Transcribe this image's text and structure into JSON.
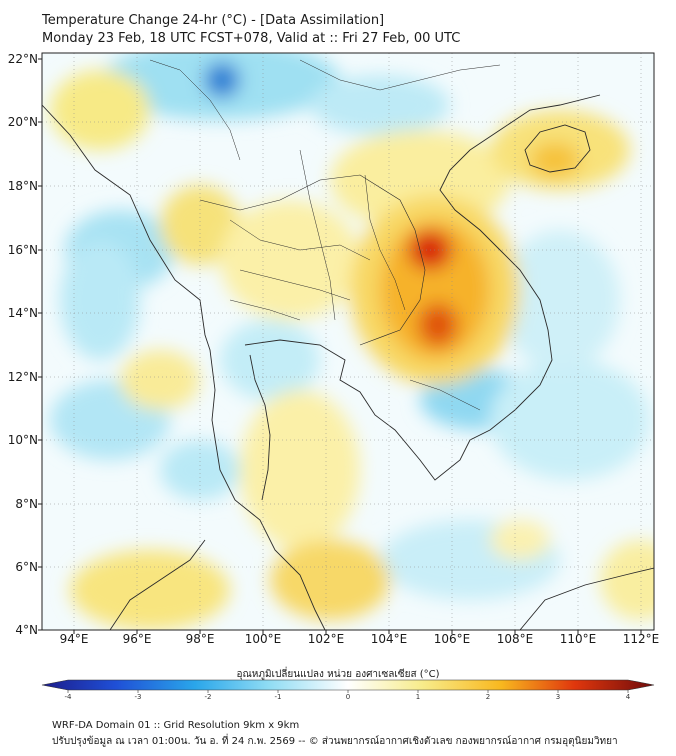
{
  "title_line1": "Temperature Change 24-hr (°C) - [Data Assimilation]",
  "title_line2": "Monday 23 Feb, 18 UTC FCST+078, Valid at :: Fri 27 Feb, 00 UTC",
  "lat_labels": [
    "22°N",
    "20°N",
    "18°N",
    "16°N",
    "14°N",
    "12°N",
    "10°N",
    "8°N",
    "6°N",
    "4°N"
  ],
  "lon_labels": [
    "94°E",
    "96°E",
    "98°E",
    "100°E",
    "102°E",
    "104°E",
    "106°E",
    "108°E",
    "110°E",
    "112°E"
  ],
  "colorbar": {
    "label": "อุณหภูมิเปลี่ยนแปลง หน่วย องศาเซลเซียส (°C)",
    "ticks": [
      "-4",
      "-3",
      "-2",
      "-1",
      "0",
      "1",
      "2",
      "3",
      "4"
    ],
    "range": [
      -4,
      4
    ]
  },
  "footer_line1": "WRF-DA Domain 01 :: Grid Resolution 9km x 9km",
  "footer_line2": "ปรับปรุงข้อมูล ณ เวลา 01:00น. วัน อ. ที่ 24 ก.พ. 2569 -- © ส่วนพยากรณ์อากาศเชิงตัวเลข กองพยากรณ์อากาศ กรมอุตุนิยมวิทยา",
  "colors": {
    "frame": "#222222",
    "coast": "#2a2a2a",
    "warm_peak": "#d9280c",
    "cold_peak": "#2a7fd4"
  }
}
